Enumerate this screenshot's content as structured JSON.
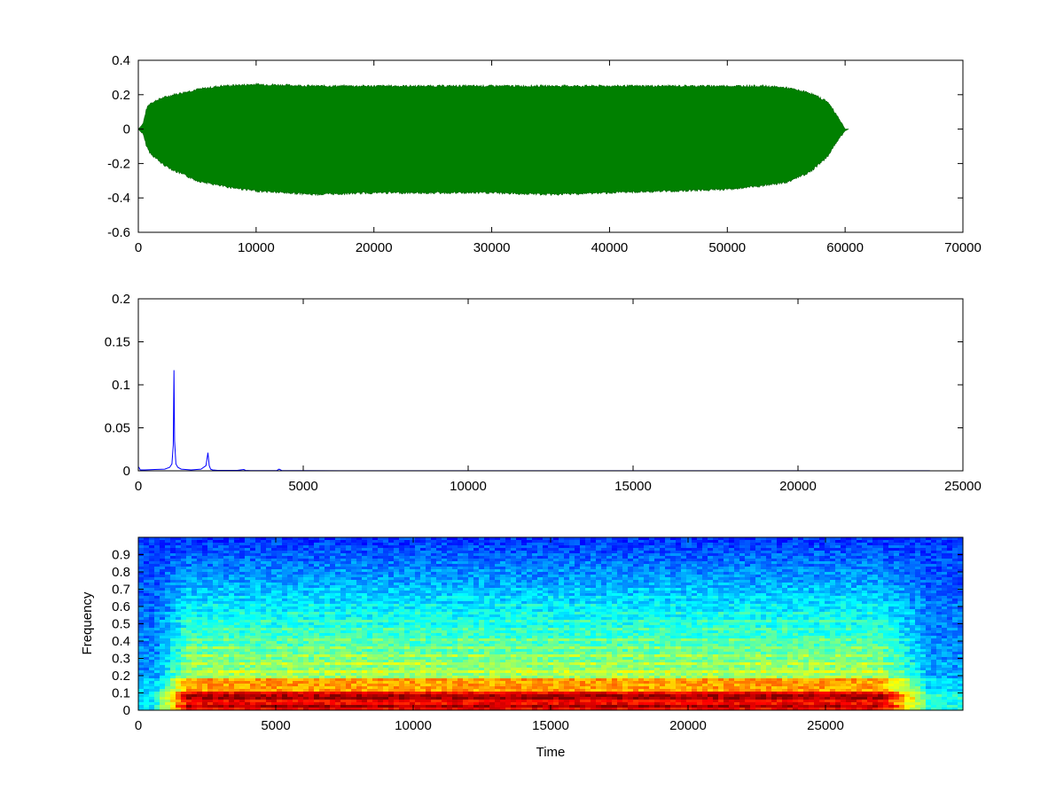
{
  "chart_data": [
    {
      "type": "area",
      "title": "",
      "xlabel": "",
      "ylabel": "",
      "xlim": [
        0,
        70000
      ],
      "ylim": [
        -0.6,
        0.4
      ],
      "x_ticks": [
        "0",
        "10000",
        "20000",
        "30000",
        "40000",
        "50000",
        "60000",
        "70000"
      ],
      "y_ticks": [
        "0.4",
        "0.2",
        "0",
        "-0.2",
        "-0.4",
        "-0.6"
      ],
      "grid": false,
      "series": [
        {
          "color": "#008000",
          "x": [
            0,
            400,
            700,
            1000,
            2000,
            3000,
            5000,
            7000,
            10000,
            15000,
            20000,
            25000,
            30000,
            35000,
            40000,
            45000,
            50000,
            53000,
            55000,
            57000,
            58500,
            59500,
            60000,
            60300
          ],
          "upper": [
            0,
            0.03,
            0.12,
            0.15,
            0.18,
            0.2,
            0.23,
            0.25,
            0.26,
            0.25,
            0.25,
            0.25,
            0.25,
            0.25,
            0.25,
            0.25,
            0.25,
            0.25,
            0.24,
            0.21,
            0.16,
            0.06,
            0.0,
            0.0
          ],
          "lower": [
            0,
            -0.03,
            -0.1,
            -0.14,
            -0.2,
            -0.24,
            -0.3,
            -0.33,
            -0.36,
            -0.38,
            -0.37,
            -0.37,
            -0.37,
            -0.38,
            -0.37,
            -0.36,
            -0.35,
            -0.33,
            -0.31,
            -0.25,
            -0.16,
            -0.05,
            -0.01,
            0.0
          ]
        }
      ]
    },
    {
      "type": "line",
      "title": "",
      "xlabel": "",
      "ylabel": "",
      "xlim": [
        0,
        25000
      ],
      "ylim": [
        0,
        0.2
      ],
      "x_ticks": [
        "0",
        "5000",
        "10000",
        "15000",
        "20000",
        "25000"
      ],
      "y_ticks": [
        "0.2",
        "0.15",
        "0.1",
        "0.05",
        "0"
      ],
      "grid": false,
      "series": [
        {
          "color": "#0000ff",
          "x": [
            0,
            20,
            60,
            200,
            500,
            800,
            950,
            1020,
            1060,
            1080,
            1100,
            1140,
            1200,
            1300,
            1600,
            1900,
            2050,
            2110,
            2150,
            2190,
            2250,
            2400,
            3000,
            3200,
            3250,
            3400,
            4200,
            4270,
            4350,
            5000,
            8000,
            12000,
            16000,
            20000,
            24000
          ],
          "y": [
            0.004,
            0.004,
            0.001,
            0.001,
            0.0015,
            0.002,
            0.004,
            0.008,
            0.03,
            0.117,
            0.035,
            0.008,
            0.004,
            0.002,
            0.001,
            0.002,
            0.006,
            0.021,
            0.006,
            0.002,
            0.001,
            0.0005,
            0.0005,
            0.0015,
            0.0005,
            0.0003,
            0.0003,
            0.002,
            0.0003,
            0.0002,
            0.0001,
            0.0001,
            0.0001,
            0.0001,
            0.0001
          ]
        }
      ]
    },
    {
      "type": "heatmap",
      "title": "",
      "xlabel": "Time",
      "ylabel": "Frequency",
      "xlim": [
        0,
        30000
      ],
      "ylim": [
        0,
        1
      ],
      "x_ticks": [
        "0",
        "5000",
        "10000",
        "15000",
        "20000",
        "25000"
      ],
      "y_ticks": [
        "0.9",
        "0.8",
        "0.7",
        "0.6",
        "0.5",
        "0.4",
        "0.3",
        "0.2",
        "0.1",
        "0"
      ],
      "grid": false,
      "colormap": "jet"
    }
  ]
}
